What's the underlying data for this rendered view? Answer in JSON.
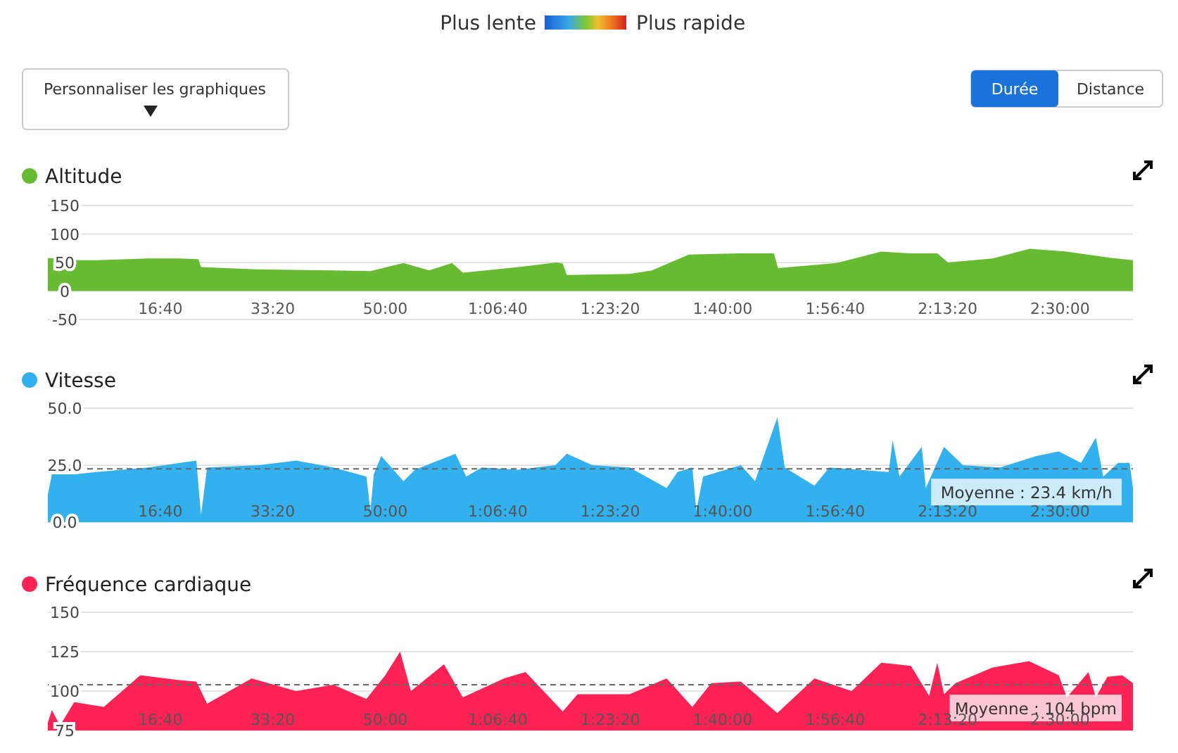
{
  "chart_data": [
    {
      "type": "other",
      "annotations": [
        "Plus lente",
        "Plus rapide",
        "Personnaliser les graphiques",
        "Durée",
        "Distance"
      ]
    },
    {
      "type": "area",
      "title": "Altitude",
      "color": "#66bb33",
      "grid": "y",
      "x": [
        0,
        3.9,
        7.2,
        14.9,
        19.3,
        22.3,
        22.7,
        30.8,
        42.3,
        47.8,
        52.7,
        56.5,
        59.9,
        61.5,
        69.7,
        75.3,
        76.3,
        76.9,
        86.2,
        89.5,
        95,
        102.7,
        107.6,
        108.2,
        116.9,
        123.5,
        127.9,
        131.8,
        133.4,
        140,
        145.5,
        151,
        157.6,
        160.8
      ],
      "values": [
        58,
        54,
        54,
        57,
        57,
        56,
        42,
        38,
        36,
        35,
        49,
        36,
        49,
        32,
        42,
        50,
        48,
        28,
        30,
        36,
        64,
        66,
        66,
        40,
        49,
        69,
        66,
        66,
        50,
        57,
        74,
        69,
        58,
        54
      ],
      "xlim": [
        0,
        160.8
      ],
      "ylim": [
        -50,
        150
      ],
      "yticks": [
        -50,
        0,
        50,
        100,
        150
      ],
      "xticks": [
        {
          "value": 16.667,
          "label": "16:40"
        },
        {
          "value": 33.333,
          "label": "33:20"
        },
        {
          "value": 50,
          "label": "50:00"
        },
        {
          "value": 66.667,
          "label": "1:06:40"
        },
        {
          "value": 83.333,
          "label": "1:23:20"
        },
        {
          "value": 100,
          "label": "1:40:00"
        },
        {
          "value": 116.667,
          "label": "1:56:40"
        },
        {
          "value": 133.333,
          "label": "2:13:20"
        },
        {
          "value": 150,
          "label": "2:30:00"
        }
      ]
    },
    {
      "type": "area",
      "title": "Vitesse",
      "color": "#33b0ee",
      "grid": "y",
      "x": [
        0,
        0.6,
        3.9,
        7.2,
        14.9,
        22,
        22.7,
        23.6,
        31.3,
        36.8,
        42.3,
        47.2,
        47.8,
        48.3,
        49.4,
        52.7,
        54.4,
        60.4,
        62,
        64.3,
        69.7,
        75.2,
        76.9,
        80.7,
        86.2,
        91.7,
        93.3,
        95.5,
        96.1,
        97.1,
        102.7,
        104.8,
        108.1,
        109.2,
        113.6,
        115.8,
        124.6,
        125.2,
        126.2,
        129.5,
        130.1,
        132.8,
        135.6,
        141.1,
        146.5,
        149.8,
        153.1,
        155.3,
        156.4,
        158.6,
        160.3,
        160.8
      ],
      "values": [
        12,
        21,
        21,
        22,
        24,
        27,
        3,
        24,
        25,
        27,
        24,
        20,
        5,
        21,
        29,
        18,
        23,
        30,
        20,
        24,
        23,
        25,
        30,
        25,
        24,
        15,
        22,
        24,
        5,
        20,
        25,
        18,
        46,
        24,
        16,
        24,
        22,
        36,
        20,
        33,
        15,
        33,
        25,
        24,
        29,
        31,
        26,
        37,
        20,
        26,
        26,
        15
      ],
      "xlim": [
        0,
        160.8
      ],
      "ylim": [
        0,
        50
      ],
      "yticks": [
        {
          "value": 0,
          "label": "0.0"
        },
        {
          "value": 25,
          "label": "25.0"
        },
        {
          "value": 50,
          "label": "50.0"
        }
      ],
      "xticks": [
        {
          "value": 16.667,
          "label": "16:40"
        },
        {
          "value": 33.333,
          "label": "33:20"
        },
        {
          "value": 50,
          "label": "50:00"
        },
        {
          "value": 66.667,
          "label": "1:06:40"
        },
        {
          "value": 83.333,
          "label": "1:23:20"
        },
        {
          "value": 100,
          "label": "1:40:00"
        },
        {
          "value": 116.667,
          "label": "1:56:40"
        },
        {
          "value": 133.333,
          "label": "2:13:20"
        },
        {
          "value": 150,
          "label": "2:30:00"
        }
      ],
      "ref_lines": [
        {
          "axis": "y",
          "value": 23.4,
          "label": "Moyenne : 23.4 km/h",
          "line_style": "dashed",
          "color": "#666666"
        }
      ]
    },
    {
      "type": "area",
      "title": "Fréquence cardiaque",
      "color": "#ff2255",
      "grid": "y",
      "x": [
        0,
        0.6,
        1.8,
        3.9,
        8.3,
        13.7,
        19.3,
        22,
        23.6,
        30.2,
        36.8,
        42.3,
        47.2,
        50,
        52.2,
        53.8,
        58.7,
        61.5,
        67.6,
        70.8,
        76.3,
        78.5,
        86.2,
        91.7,
        95.5,
        98.3,
        102.7,
        108.1,
        113.6,
        119.1,
        123.5,
        127.9,
        130.6,
        131.8,
        132.8,
        134.5,
        140,
        145.4,
        149.8,
        151,
        154.2,
        155.3,
        157,
        159.2,
        160.8
      ],
      "values": [
        80,
        88,
        78,
        93,
        90,
        110,
        107,
        106,
        92,
        108,
        100,
        104,
        95,
        110,
        125,
        100,
        117,
        96,
        108,
        112,
        87,
        98,
        98,
        108,
        90,
        105,
        106,
        86,
        108,
        100,
        118,
        116,
        97,
        118,
        98,
        105,
        115,
        119,
        110,
        96,
        112,
        96,
        109,
        110,
        105
      ],
      "xlim": [
        0,
        160.8
      ],
      "ylim": [
        75,
        150
      ],
      "yticks": [
        75,
        100,
        125,
        150
      ],
      "xticks": [
        {
          "value": 16.667,
          "label": "16:40"
        },
        {
          "value": 33.333,
          "label": "33:20"
        },
        {
          "value": 50,
          "label": "50:00"
        },
        {
          "value": 66.667,
          "label": "1:06:40"
        },
        {
          "value": 83.333,
          "label": "1:23:20"
        },
        {
          "value": 100,
          "label": "1:40:00"
        },
        {
          "value": 116.667,
          "label": "1:56:40"
        },
        {
          "value": 133.333,
          "label": "2:13:20"
        },
        {
          "value": 150,
          "label": "2:30:00"
        }
      ],
      "ref_lines": [
        {
          "axis": "y",
          "value": 104,
          "label": "Moyenne : 104 bpm",
          "line_style": "dashed",
          "color": "#666666"
        }
      ]
    }
  ]
}
